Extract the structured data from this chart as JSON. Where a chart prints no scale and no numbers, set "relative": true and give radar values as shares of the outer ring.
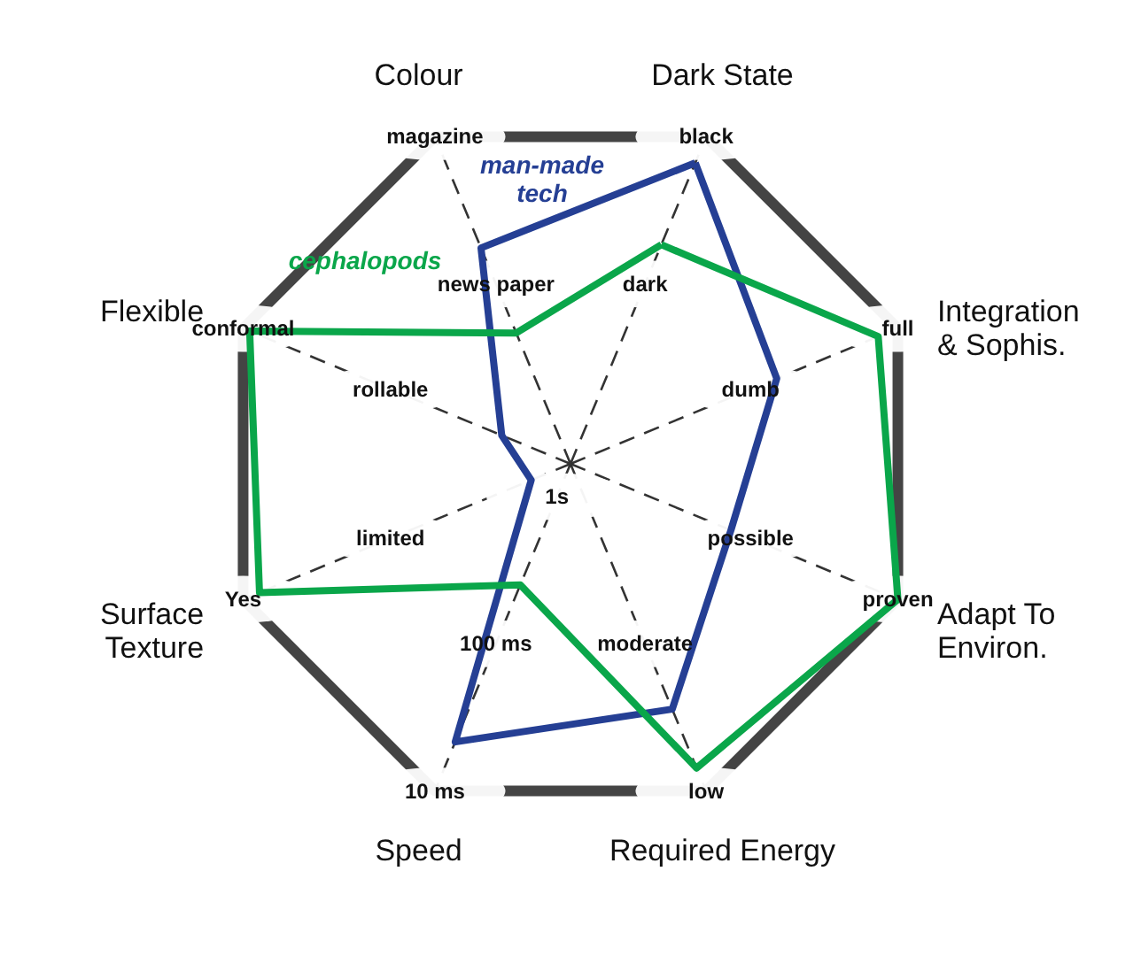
{
  "chart_data": {
    "type": "radar",
    "relative": true,
    "grid": true,
    "legend": false,
    "marker": "none",
    "categories": [
      "Dark State",
      "Integration & Sophis.",
      "Adapt To Environ.",
      "Required Energy",
      "Speed",
      "Surface Texture",
      "Flexible",
      "Colour"
    ],
    "series": [
      {
        "name": "man-made tech",
        "color": "#253f94",
        "values": [
          0.92,
          0.63,
          0.49,
          0.75,
          0.85,
          0.12,
          0.21,
          0.66
        ]
      },
      {
        "name": "cephalopods",
        "color": "#0aa64a",
        "values": [
          0.67,
          0.94,
          1.0,
          0.93,
          0.37,
          0.95,
          0.98,
          0.4
        ]
      }
    ],
    "annotations": [
      {
        "text": "black",
        "x": "Dark State"
      },
      {
        "text": "dark",
        "x": "Dark State"
      },
      {
        "text": "full",
        "x": "Integration & Sophis."
      },
      {
        "text": "dumb",
        "x": "Integration & Sophis."
      },
      {
        "text": "proven",
        "x": "Adapt To Environ."
      },
      {
        "text": "possible",
        "x": "Adapt To Environ."
      },
      {
        "text": "low",
        "x": "Required Energy"
      },
      {
        "text": "moderate",
        "x": "Required Energy"
      },
      {
        "text": "10 ms",
        "x": "Speed"
      },
      {
        "text": "100 ms",
        "x": "Speed"
      },
      {
        "text": "1s",
        "x": "Speed"
      },
      {
        "text": "Yes",
        "x": "Surface Texture"
      },
      {
        "text": "limited",
        "x": "Surface Texture"
      },
      {
        "text": "conformal",
        "x": "Flexible"
      },
      {
        "text": "rollable",
        "x": "Flexible"
      },
      {
        "text": "magazine",
        "x": "Colour"
      },
      {
        "text": "news paper",
        "x": "Colour"
      }
    ]
  }
}
